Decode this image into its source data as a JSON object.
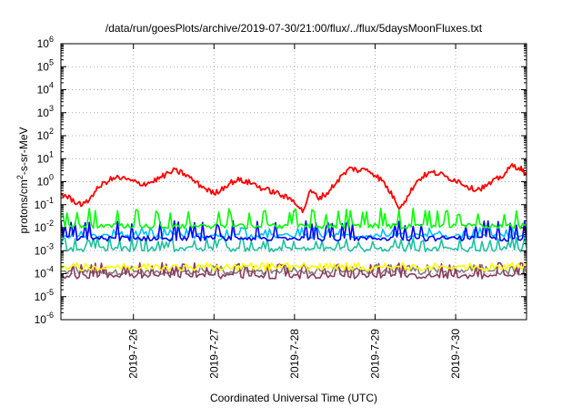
{
  "chart_data": {
    "type": "line",
    "title": "/data/run/goesPlots/archive/2019-07-30/21:00/flux/../flux/5daysMoonFluxes.txt",
    "xlabel": "Coordinated Universal Time (UTC)",
    "ylabel_main": "protons/cm",
    "ylabel_sup": "2",
    "ylabel_rest": "-s-sr-MeV",
    "y_scale": "log",
    "ylim": [
      1e-06,
      1000000.0
    ],
    "y_tick_exponents": [
      -6,
      -5,
      -4,
      -3,
      -2,
      -1,
      0,
      1,
      2,
      3,
      4,
      5,
      6
    ],
    "y_tick_base": "10",
    "x_tick_labels": [
      "2019-7-26",
      "2019-7-27",
      "2019-7-28",
      "2019-7-29",
      "2019-7-30"
    ],
    "x_range_days": [
      25.1,
      30.88
    ],
    "grid": true,
    "series": [
      {
        "color": "#ff0000",
        "x": [
          25.1,
          25.2,
          25.3,
          25.4,
          25.5,
          25.6,
          25.7,
          25.8,
          25.9,
          26.0,
          26.1,
          26.2,
          26.3,
          26.4,
          26.5,
          26.6,
          26.7,
          26.8,
          26.9,
          27.0,
          27.1,
          27.2,
          27.3,
          27.4,
          27.5,
          27.6,
          27.7,
          27.8,
          27.9,
          28.0,
          28.1,
          28.2,
          28.3,
          28.4,
          28.5,
          28.6,
          28.7,
          28.8,
          28.9,
          29.0,
          29.1,
          29.2,
          29.3,
          29.4,
          29.5,
          29.6,
          29.7,
          29.8,
          29.9,
          30.0,
          30.1,
          30.2,
          30.3,
          30.4,
          30.5,
          30.6,
          30.7,
          30.8,
          30.88
        ],
        "values": [
          0.3,
          0.2,
          0.12,
          0.1,
          0.3,
          0.7,
          1.2,
          1.5,
          1.3,
          1.0,
          0.8,
          0.9,
          1.3,
          2.0,
          3.0,
          2.5,
          1.5,
          0.8,
          0.5,
          0.3,
          0.5,
          0.9,
          1.2,
          1.0,
          0.8,
          0.5,
          0.4,
          0.3,
          0.2,
          0.15,
          0.05,
          0.4,
          0.2,
          0.3,
          0.8,
          2.0,
          4.0,
          3.0,
          3.5,
          2.0,
          1.0,
          0.3,
          0.08,
          0.2,
          0.9,
          1.8,
          2.5,
          2.2,
          1.5,
          1.2,
          0.8,
          0.5,
          0.5,
          0.7,
          1.2,
          2.0,
          5.0,
          4.0,
          2.0
        ]
      },
      {
        "color": "#00ff00",
        "base": 0.012,
        "spike_to": 0.07
      },
      {
        "color": "#0000ff",
        "base": 0.0035,
        "spike_to": 0.02
      },
      {
        "color": "#00bfff",
        "base": 0.0045,
        "spike_to": 0.01
      },
      {
        "color": "#20c0a0",
        "base": 0.0012,
        "spike_to": 0.004
      },
      {
        "color": "#ffff00",
        "base": 0.00018,
        "spike_to": 0.0003
      },
      {
        "color": "#808080",
        "base": 0.00012,
        "spike_to": 0.00025
      },
      {
        "color": "#8b3a62",
        "base": 8e-05,
        "spike_to": 0.0003
      }
    ]
  }
}
